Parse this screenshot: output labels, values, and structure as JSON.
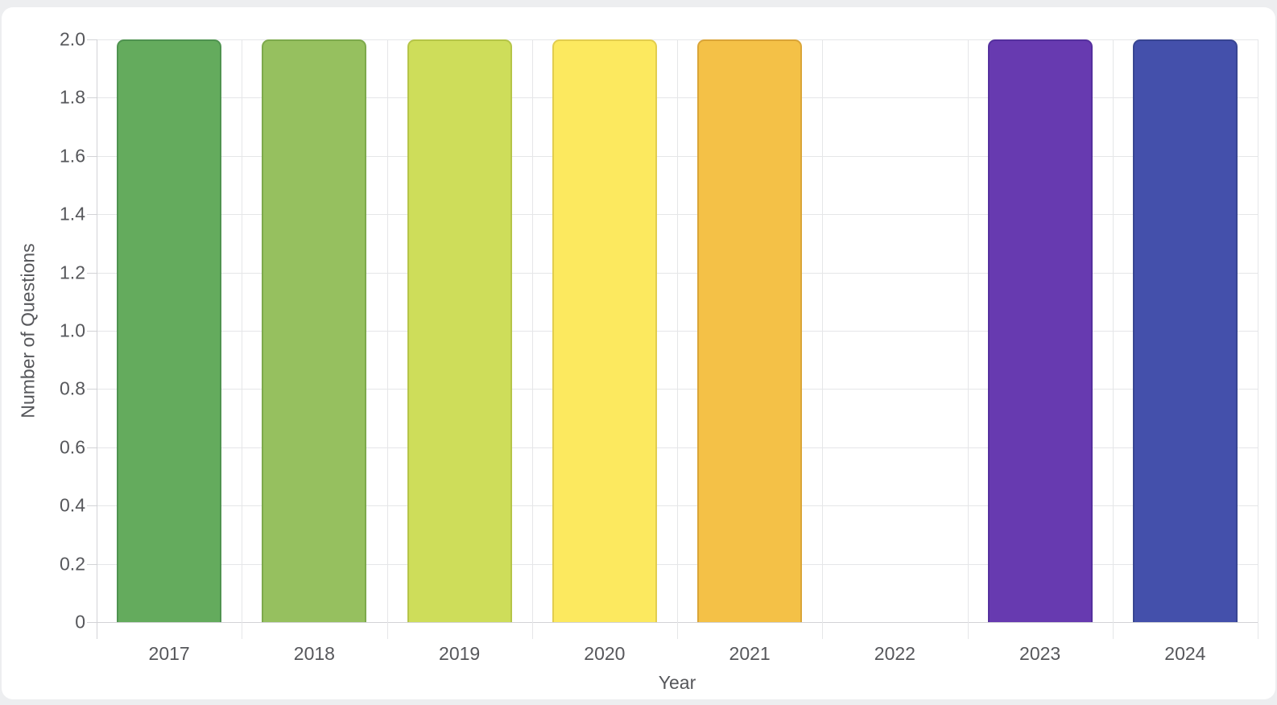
{
  "chart_data": {
    "type": "bar",
    "title": "",
    "xlabel": "Year",
    "ylabel": "Number of Questions",
    "categories": [
      "2017",
      "2018",
      "2019",
      "2020",
      "2021",
      "2022",
      "2023",
      "2024"
    ],
    "values": [
      2,
      2,
      2,
      2,
      2,
      0,
      2,
      2
    ],
    "bar_fill_colors": [
      "#64ab5d",
      "#96c05f",
      "#cedd5a",
      "#fce95f",
      "#f4c147",
      null,
      "#673ab0",
      "#4450ab"
    ],
    "bar_border_colors": [
      "#4f9350",
      "#7da94c",
      "#b5c548",
      "#e2cd4e",
      "#daa538",
      null,
      "#55309e",
      "#384592"
    ],
    "ylim": [
      0,
      2
    ],
    "y_ticks": [
      "2.0",
      "1.8",
      "1.6",
      "1.4",
      "1.2",
      "1.0",
      "0.8",
      "0.6",
      "0.4",
      "0.2",
      "0"
    ],
    "grid": true,
    "legend": false
  },
  "colors": {
    "page_background": "#edeef0",
    "card_background": "#ffffff",
    "gridline": "#e5e6e8",
    "axis_line": "#d2d3d6",
    "label_text": "#56575b"
  }
}
